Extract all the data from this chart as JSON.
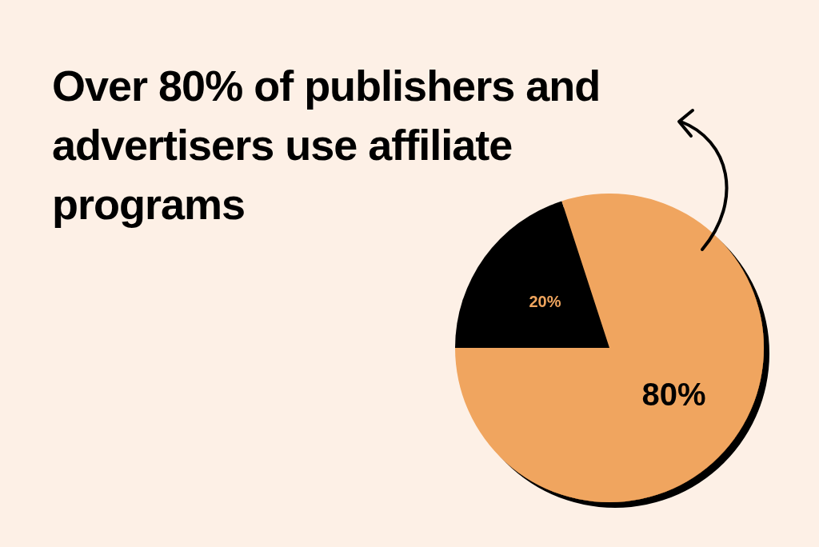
{
  "chart_data": {
    "type": "pie",
    "title": "Over 80% of publishers and advertisers use affiliate programs",
    "categories": [
      null,
      null
    ],
    "values": [
      20,
      80
    ],
    "colors": [
      "#000000",
      "#f0a55e"
    ],
    "value_labels": [
      "20%",
      "80%"
    ]
  }
}
